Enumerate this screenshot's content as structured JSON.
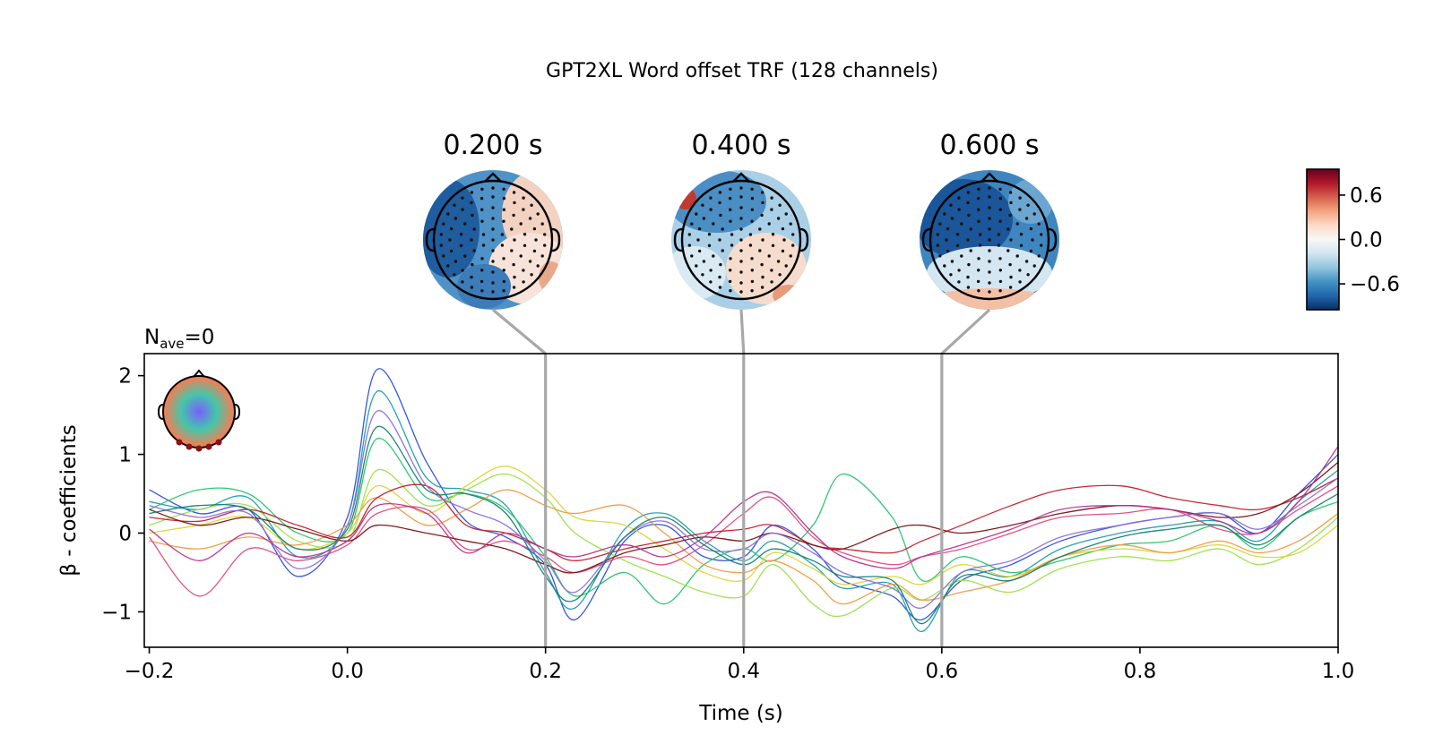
{
  "title": "GPT2XL Word offset TRF (128 channels)",
  "nave_label": {
    "base": "N",
    "sub": "ave",
    "rest": "=0"
  },
  "chart_data": {
    "type": "line",
    "title": "GPT2XL Word offset TRF (128 channels)",
    "xlabel": "Time (s)",
    "ylabel": "β - coefficients",
    "xlim": [
      -0.205,
      1.0
    ],
    "ylim": [
      -1.45,
      2.28
    ],
    "xticks": [
      {
        "value": -0.2,
        "label": "−0.2"
      },
      {
        "value": 0.0,
        "label": "0.0"
      },
      {
        "value": 0.2,
        "label": "0.2"
      },
      {
        "value": 0.4,
        "label": "0.4"
      },
      {
        "value": 0.6,
        "label": "0.6"
      },
      {
        "value": 0.8,
        "label": "0.8"
      },
      {
        "value": 1.0,
        "label": "1.0"
      }
    ],
    "yticks": [
      {
        "value": -1,
        "label": "−1"
      },
      {
        "value": 0,
        "label": "0"
      },
      {
        "value": 1,
        "label": "1"
      },
      {
        "value": 2,
        "label": "2"
      }
    ],
    "channel_count": 128,
    "grid": false,
    "time_markers": [
      0.2,
      0.4,
      0.6
    ],
    "series": [
      {
        "color": "#2a4fd9",
        "x": [
          -0.2,
          -0.15,
          -0.1,
          -0.05,
          0.0,
          0.03,
          0.08,
          0.12,
          0.16,
          0.2,
          0.23,
          0.28,
          0.32,
          0.36,
          0.4,
          0.43,
          0.47,
          0.5,
          0.55,
          0.58,
          0.62,
          0.67,
          0.72,
          0.78,
          0.83,
          0.88,
          0.92,
          0.96,
          1.0
        ],
        "y": [
          0.55,
          0.25,
          0.3,
          -0.55,
          0.2,
          2.08,
          0.9,
          0.15,
          -0.05,
          -0.4,
          -1.1,
          -0.1,
          0.1,
          -0.3,
          -0.3,
          0.1,
          -0.2,
          -0.6,
          -0.8,
          -1.1,
          -0.6,
          -0.4,
          -0.1,
          0.1,
          0.2,
          0.25,
          0.0,
          0.5,
          1.0
        ]
      },
      {
        "color": "#1f9bb0",
        "x": [
          -0.2,
          -0.15,
          -0.1,
          -0.05,
          0.0,
          0.03,
          0.08,
          0.12,
          0.16,
          0.2,
          0.23,
          0.28,
          0.32,
          0.36,
          0.4,
          0.43,
          0.47,
          0.5,
          0.55,
          0.58,
          0.62,
          0.67,
          0.72,
          0.78,
          0.83,
          0.88,
          0.92,
          0.96,
          1.0
        ],
        "y": [
          0.4,
          0.3,
          0.45,
          -0.3,
          0.1,
          1.8,
          0.7,
          0.55,
          0.35,
          -0.5,
          -0.95,
          0.05,
          0.25,
          -0.1,
          -0.35,
          -0.1,
          -0.4,
          -0.7,
          -0.65,
          -1.25,
          -0.5,
          -0.55,
          -0.2,
          0.0,
          0.1,
          0.15,
          -0.1,
          0.4,
          0.8
        ]
      },
      {
        "color": "#27c46a",
        "x": [
          -0.2,
          -0.15,
          -0.1,
          -0.05,
          0.0,
          0.03,
          0.08,
          0.12,
          0.16,
          0.2,
          0.23,
          0.28,
          0.32,
          0.36,
          0.4,
          0.43,
          0.47,
          0.5,
          0.55,
          0.58,
          0.62,
          0.67,
          0.72,
          0.78,
          0.83,
          0.88,
          0.92,
          0.96,
          1.0
        ],
        "y": [
          0.3,
          0.55,
          0.5,
          0.0,
          0.0,
          1.2,
          0.45,
          0.5,
          0.3,
          -0.3,
          -0.8,
          -0.5,
          -0.9,
          -0.4,
          -0.2,
          -0.35,
          0.1,
          0.75,
          0.2,
          -0.6,
          -0.3,
          -0.5,
          -0.35,
          -0.15,
          -0.1,
          0.1,
          -0.2,
          0.2,
          0.4
        ]
      },
      {
        "color": "#9be04a",
        "x": [
          -0.2,
          -0.15,
          -0.1,
          -0.05,
          0.0,
          0.03,
          0.08,
          0.12,
          0.16,
          0.2,
          0.23,
          0.28,
          0.32,
          0.36,
          0.4,
          0.43,
          0.47,
          0.5,
          0.55,
          0.58,
          0.62,
          0.67,
          0.72,
          0.78,
          0.83,
          0.88,
          0.92,
          0.96,
          1.0
        ],
        "y": [
          0.1,
          0.3,
          0.35,
          -0.1,
          -0.1,
          0.8,
          0.35,
          0.55,
          0.75,
          0.45,
          0.0,
          -0.35,
          -0.55,
          -0.75,
          -0.8,
          -0.4,
          -0.9,
          -1.05,
          -0.7,
          -0.85,
          -0.6,
          -0.75,
          -0.45,
          -0.3,
          -0.35,
          -0.2,
          -0.4,
          -0.2,
          0.2
        ]
      },
      {
        "color": "#d9d636",
        "x": [
          -0.2,
          -0.15,
          -0.1,
          -0.05,
          0.0,
          0.03,
          0.08,
          0.12,
          0.16,
          0.2,
          0.23,
          0.28,
          0.32,
          0.36,
          0.4,
          0.43,
          0.47,
          0.5,
          0.55,
          0.58,
          0.62,
          0.67,
          0.72,
          0.78,
          0.83,
          0.88,
          0.92,
          0.96,
          1.0
        ],
        "y": [
          0.0,
          0.1,
          0.2,
          -0.2,
          0.0,
          0.6,
          0.25,
          0.6,
          0.85,
          0.55,
          0.2,
          0.1,
          -0.2,
          -0.5,
          -0.6,
          -0.25,
          -0.45,
          -0.65,
          -0.55,
          -0.65,
          -0.4,
          -0.55,
          -0.3,
          -0.2,
          -0.25,
          -0.15,
          -0.3,
          -0.25,
          0.1
        ]
      },
      {
        "color": "#f09a45",
        "x": [
          -0.2,
          -0.15,
          -0.1,
          -0.05,
          0.0,
          0.03,
          0.08,
          0.12,
          0.16,
          0.2,
          0.23,
          0.28,
          0.32,
          0.36,
          0.4,
          0.43,
          0.47,
          0.5,
          0.55,
          0.58,
          0.62,
          0.67,
          0.72,
          0.78,
          0.83,
          0.88,
          0.92,
          0.96,
          1.0
        ],
        "y": [
          -0.1,
          -0.2,
          -0.05,
          -0.15,
          0.1,
          0.45,
          0.1,
          0.3,
          0.55,
          0.35,
          0.25,
          0.35,
          0.0,
          -0.4,
          -0.5,
          -0.35,
          -0.6,
          -0.9,
          -0.65,
          -0.85,
          -0.75,
          -0.6,
          -0.3,
          -0.15,
          -0.25,
          -0.1,
          -0.25,
          -0.1,
          0.25
        ]
      },
      {
        "color": "#e04a7c",
        "x": [
          -0.2,
          -0.15,
          -0.1,
          -0.05,
          0.0,
          0.03,
          0.08,
          0.12,
          0.16,
          0.2,
          0.23,
          0.28,
          0.32,
          0.36,
          0.4,
          0.43,
          0.47,
          0.5,
          0.55,
          0.58,
          0.62,
          0.67,
          0.72,
          0.78,
          0.83,
          0.88,
          0.92,
          0.96,
          1.0
        ],
        "y": [
          -0.05,
          -0.8,
          -0.2,
          -0.35,
          -0.15,
          0.25,
          0.3,
          -0.2,
          -0.1,
          -0.3,
          -0.5,
          -0.3,
          -0.4,
          -0.15,
          0.25,
          0.45,
          -0.05,
          -0.25,
          -0.4,
          -0.3,
          -0.2,
          0.0,
          0.2,
          0.25,
          0.3,
          0.05,
          0.0,
          0.3,
          0.6
        ]
      },
      {
        "color": "#c41f2a",
        "x": [
          -0.2,
          -0.15,
          -0.1,
          -0.05,
          0.0,
          0.03,
          0.08,
          0.12,
          0.16,
          0.2,
          0.23,
          0.28,
          0.32,
          0.36,
          0.4,
          0.43,
          0.47,
          0.5,
          0.55,
          0.58,
          0.62,
          0.67,
          0.72,
          0.78,
          0.83,
          0.88,
          0.92,
          0.96,
          1.0
        ],
        "y": [
          0.2,
          0.15,
          0.3,
          0.1,
          -0.05,
          0.45,
          0.6,
          0.1,
          0.0,
          -0.2,
          -0.35,
          -0.2,
          -0.1,
          0.0,
          0.05,
          0.1,
          -0.15,
          -0.2,
          -0.25,
          -0.1,
          0.1,
          0.35,
          0.55,
          0.6,
          0.45,
          0.35,
          0.3,
          0.45,
          0.7
        ]
      },
      {
        "color": "#7a1010",
        "x": [
          -0.2,
          -0.15,
          -0.1,
          -0.05,
          0.0,
          0.03,
          0.08,
          0.12,
          0.16,
          0.2,
          0.23,
          0.28,
          0.32,
          0.36,
          0.4,
          0.43,
          0.47,
          0.5,
          0.55,
          0.58,
          0.62,
          0.67,
          0.72,
          0.78,
          0.83,
          0.88,
          0.92,
          0.96,
          1.0
        ],
        "y": [
          0.3,
          0.1,
          0.2,
          0.05,
          -0.1,
          0.1,
          0.0,
          -0.1,
          -0.2,
          -0.4,
          -0.5,
          -0.25,
          -0.15,
          -0.05,
          -0.1,
          0.0,
          -0.15,
          -0.2,
          0.05,
          0.1,
          0.0,
          0.1,
          0.25,
          0.35,
          0.3,
          0.2,
          0.25,
          0.5,
          0.9
        ]
      },
      {
        "color": "#b6308f",
        "x": [
          -0.2,
          -0.15,
          -0.1,
          -0.05,
          0.0,
          0.03,
          0.08,
          0.12,
          0.16,
          0.2,
          0.23,
          0.28,
          0.32,
          0.36,
          0.4,
          0.43,
          0.47,
          0.5,
          0.55,
          0.58,
          0.62,
          0.67,
          0.72,
          0.78,
          0.83,
          0.88,
          0.92,
          0.96,
          1.0
        ],
        "y": [
          0.05,
          -0.35,
          0.0,
          -0.3,
          -0.1,
          0.35,
          0.25,
          -0.25,
          0.0,
          -0.2,
          -0.3,
          -0.15,
          -0.3,
          -0.05,
          0.4,
          0.5,
          0.0,
          -0.3,
          -0.45,
          -0.3,
          -0.15,
          0.05,
          0.3,
          0.35,
          0.3,
          0.15,
          0.0,
          0.4,
          1.1
        ]
      },
      {
        "color": "#8a6fdc",
        "x": [
          -0.2,
          -0.15,
          -0.1,
          -0.05,
          0.0,
          0.03,
          0.08,
          0.12,
          0.16,
          0.2,
          0.23,
          0.28,
          0.32,
          0.36,
          0.4,
          0.43,
          0.47,
          0.5,
          0.55,
          0.58,
          0.62,
          0.67,
          0.72,
          0.78,
          0.83,
          0.88,
          0.92,
          0.96,
          1.0
        ],
        "y": [
          0.35,
          0.2,
          0.25,
          -0.45,
          0.1,
          1.55,
          0.6,
          0.3,
          0.1,
          -0.35,
          -0.75,
          -0.05,
          0.15,
          -0.2,
          -0.2,
          0.0,
          -0.25,
          -0.5,
          -0.7,
          -0.95,
          -0.5,
          -0.35,
          -0.05,
          0.1,
          0.2,
          0.25,
          0.05,
          0.35,
          0.7
        ]
      },
      {
        "color": "#12806b",
        "x": [
          -0.2,
          -0.15,
          -0.1,
          -0.05,
          0.0,
          0.03,
          0.08,
          0.12,
          0.16,
          0.2,
          0.23,
          0.28,
          0.32,
          0.36,
          0.4,
          0.43,
          0.47,
          0.5,
          0.55,
          0.58,
          0.62,
          0.67,
          0.72,
          0.78,
          0.83,
          0.88,
          0.92,
          0.96,
          1.0
        ],
        "y": [
          0.25,
          0.35,
          0.3,
          -0.2,
          0.05,
          1.35,
          0.55,
          0.5,
          0.25,
          -0.55,
          -0.85,
          -0.05,
          0.2,
          -0.15,
          -0.4,
          -0.2,
          -0.35,
          -0.55,
          -0.6,
          -1.15,
          -0.55,
          -0.6,
          -0.3,
          -0.05,
          0.05,
          0.1,
          -0.15,
          0.2,
          0.5
        ]
      }
    ]
  },
  "colorbar": {
    "ticks": [
      {
        "value": 0.6,
        "label": "0.6"
      },
      {
        "value": 0.0,
        "label": "0.0"
      },
      {
        "value": -0.6,
        "label": "−0.6"
      }
    ],
    "vmin": -0.95,
    "vmax": 0.95,
    "colors": [
      "#053061",
      "#2166ac",
      "#4393c3",
      "#92c5de",
      "#d1e5f0",
      "#f7f7f7",
      "#fddbc7",
      "#f4a582",
      "#d6604d",
      "#b2182b",
      "#67001f"
    ]
  },
  "topomaps": [
    {
      "time_label": "0.200 s",
      "time": 0.2
    },
    {
      "time_label": "0.400 s",
      "time": 0.4
    },
    {
      "time_label": "0.600 s",
      "time": 0.6
    }
  ]
}
